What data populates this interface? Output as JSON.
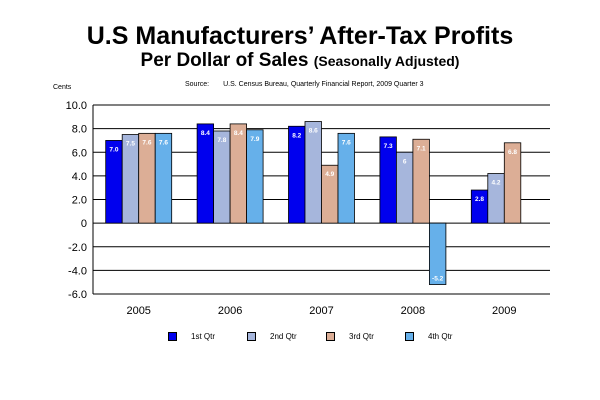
{
  "title": "U.S Manufacturers’ After-Tax Profits",
  "subtitle_main": "Per Dollar of Sales",
  "subtitle_paren": "(Seasonally Adjusted)",
  "source_label": "Source:",
  "source_text": "U.S. Census Bureau, Quarterly Financial Report, 2009 Quarter 3",
  "units_label": "Cents",
  "colors": {
    "q1": "#0000ee",
    "q2": "#a6b6dc",
    "q3": "#dcae96",
    "q4": "#66b0ea"
  },
  "chart_data": {
    "type": "bar",
    "categories": [
      "2005",
      "2006",
      "2007",
      "2008",
      "2009"
    ],
    "ylim": [
      -6.0,
      10.0
    ],
    "yticks": [
      10.0,
      8.0,
      6.0,
      4.0,
      2.0,
      0,
      -2.0,
      -4.0,
      -6.0
    ],
    "ytick_labels": [
      "10.0",
      "8.0",
      "6.0",
      "4.0",
      "2.0",
      "0",
      "-2.0",
      "-4.0",
      "-6.0"
    ],
    "grid": true,
    "legend_position": "bottom",
    "series": [
      {
        "name": "1st Qtr",
        "color_key": "q1",
        "values": [
          7.0,
          8.4,
          8.2,
          7.3,
          2.8
        ],
        "labels": [
          "7.0",
          "8.4",
          "8.2",
          "7.3",
          "2.8"
        ]
      },
      {
        "name": "2nd Qtr",
        "color_key": "q2",
        "values": [
          7.5,
          7.8,
          8.6,
          6.0,
          4.2
        ],
        "labels": [
          "7.5",
          "7.8",
          "8.6",
          "6",
          "4.2"
        ]
      },
      {
        "name": "3rd Qtr",
        "color_key": "q3",
        "values": [
          7.6,
          8.4,
          4.9,
          7.1,
          6.8
        ],
        "labels": [
          "7.6",
          "8.4",
          "4.9",
          "7.1",
          "6.8"
        ]
      },
      {
        "name": "4th Qtr",
        "color_key": "q4",
        "values": [
          7.6,
          7.9,
          7.6,
          -5.2,
          null
        ],
        "labels": [
          "7.6",
          "7.9",
          "7.6",
          "-5.2",
          ""
        ]
      }
    ]
  }
}
